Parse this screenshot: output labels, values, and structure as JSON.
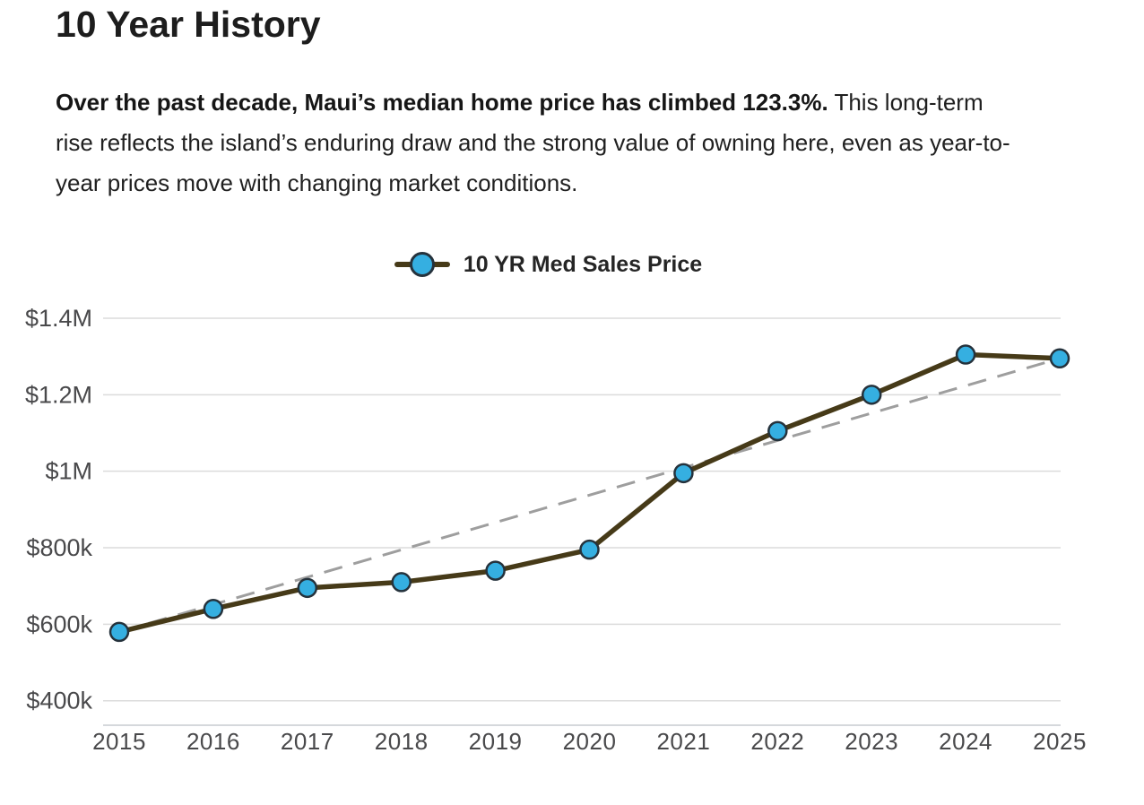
{
  "header": {
    "title": "10 Year History"
  },
  "intro": {
    "bold": "Over the past decade, Maui’s median home price has climbed 123.3%.",
    "regular": " This long-term rise reflects the island’s enduring draw and the strong value of owning here, even as year-to-year prices move with changing market conditions."
  },
  "legend": {
    "label": "10 YR Med Sales Price",
    "marker": "blue-circle-on-line"
  },
  "colors": {
    "line": "#463a18",
    "marker_fill": "#35afe1",
    "marker_stroke": "#25323c",
    "trend_dash": "#9e9e9e",
    "gridline": "#dbdbdb",
    "axis_line": "#c7ccd1",
    "tick_text": "#49494b"
  },
  "chart_data": {
    "type": "line",
    "title": "",
    "xlabel": "",
    "ylabel": "",
    "x": [
      "2015",
      "2016",
      "2017",
      "2018",
      "2019",
      "2020",
      "2021",
      "2022",
      "2023",
      "2024",
      "2025"
    ],
    "series": [
      {
        "name": "10 YR Med Sales Price",
        "values": [
          580000,
          640000,
          695000,
          710000,
          740000,
          795000,
          995000,
          1105000,
          1200000,
          1305000,
          1295000
        ],
        "style": "solid",
        "marker": "circle"
      }
    ],
    "trendline": {
      "style": "dashed",
      "from": {
        "x": "2015",
        "value": 580000
      },
      "to": {
        "x": "2025",
        "value": 1295000
      }
    },
    "ylim": [
      400000,
      1400000
    ],
    "yticks": [
      {
        "label": "$1.4M",
        "value": 1400000
      },
      {
        "label": "$1.2M",
        "value": 1200000
      },
      {
        "label": "$1M",
        "value": 1000000
      },
      {
        "label": "$800k",
        "value": 800000
      },
      {
        "label": "$600k",
        "value": 600000
      },
      {
        "label": "$400k",
        "value": 400000
      }
    ],
    "grid": true,
    "legend_position": "top-center"
  }
}
